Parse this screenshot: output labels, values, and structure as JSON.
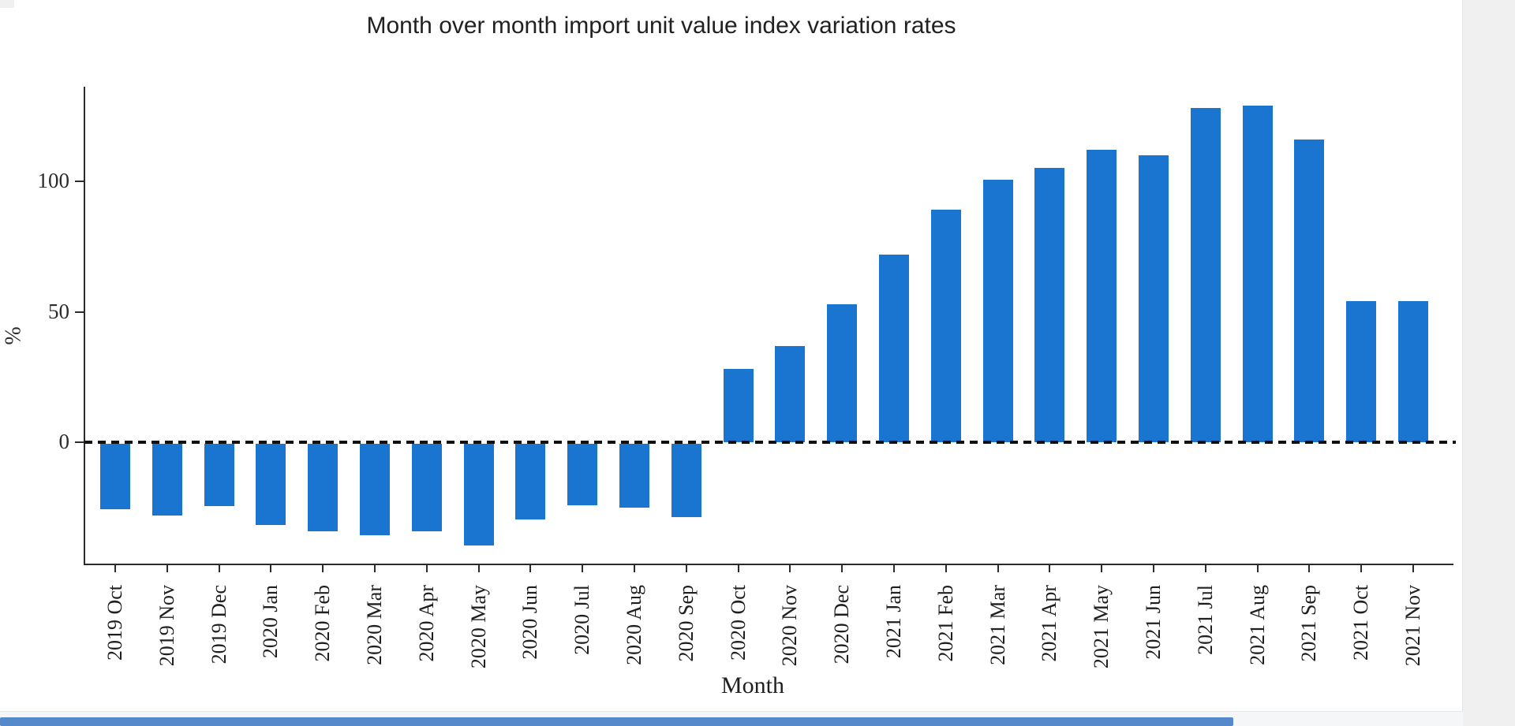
{
  "chart_data": {
    "type": "bar",
    "title": "Month over month import unit value index variation rates",
    "xlabel": "Month",
    "ylabel": "%",
    "categories": [
      "2019 Oct",
      "2019 Nov",
      "2019 Dec",
      "2020 Jan",
      "2020 Feb",
      "2020 Mar",
      "2020 Apr",
      "2020 May",
      "2020 Jun",
      "2020 Jul",
      "2020 Aug",
      "2020 Sep",
      "2020 Oct",
      "2020 Nov",
      "2020 Dec",
      "2021 Jan",
      "2021 Feb",
      "2021 Mar",
      "2021 Apr",
      "2021 May",
      "2021 Jun",
      "2021 Jul",
      "2021 Aug",
      "2021 Sep",
      "2021 Oct",
      "2021 Nov"
    ],
    "values": [
      -25,
      -27.5,
      -24,
      -31,
      -33.5,
      -35,
      -33.5,
      -39,
      -29,
      -23.5,
      -24.5,
      -28,
      28,
      37,
      53,
      72,
      89,
      100.5,
      105,
      112,
      110,
      128,
      129,
      116,
      54,
      54
    ],
    "yticks": [
      0,
      50,
      100
    ],
    "ylim": [
      -46,
      136
    ],
    "bar_color": "#1a75d1",
    "zero_line_style": "dashed",
    "grid": "off",
    "legend": "none"
  }
}
